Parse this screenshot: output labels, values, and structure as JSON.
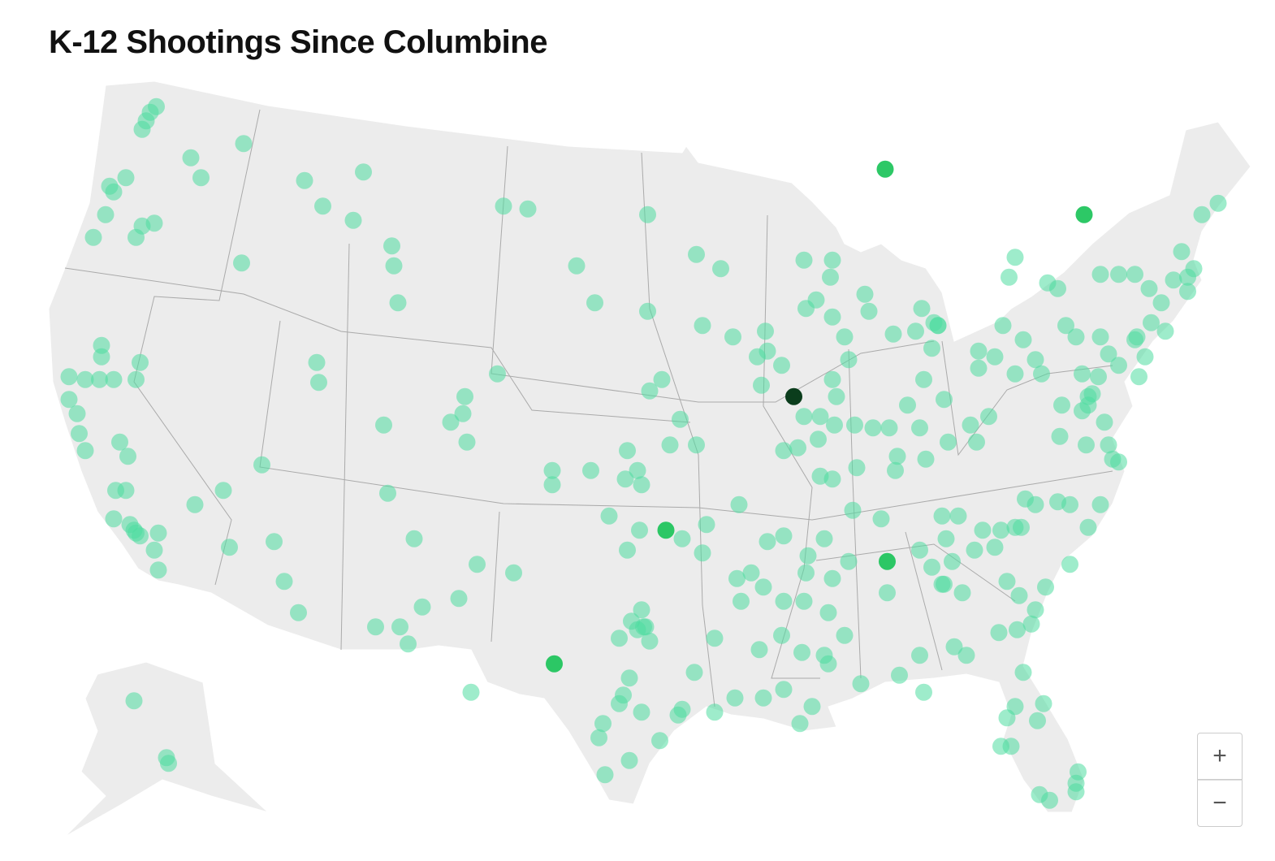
{
  "title": "K-12 Shootings Since Columbine",
  "map": {
    "groups": [
      {
        "color": "#4fdca0",
        "opacity": 0.55,
        "points": [
          [
            -120.0,
            49.5
          ],
          [
            -119.8,
            49.8
          ],
          [
            -119.5,
            50.0
          ],
          [
            -120.2,
            49.2
          ],
          [
            -121.0,
            47.5
          ],
          [
            -121.6,
            47.0
          ],
          [
            -121.8,
            47.2
          ],
          [
            -117.8,
            48.2
          ],
          [
            -117.3,
            47.5
          ],
          [
            -115.2,
            48.7
          ],
          [
            -122.0,
            46.2
          ],
          [
            -122.6,
            45.4
          ],
          [
            -120.5,
            45.4
          ],
          [
            -119.6,
            45.9
          ],
          [
            -120.2,
            45.8
          ],
          [
            -112.2,
            47.4
          ],
          [
            -109.3,
            47.7
          ],
          [
            -111.3,
            46.5
          ],
          [
            -109.8,
            46.0
          ],
          [
            -115.3,
            44.5
          ],
          [
            -107.9,
            45.1
          ],
          [
            -107.8,
            44.4
          ],
          [
            -107.6,
            43.1
          ],
          [
            -122.2,
            41.6
          ],
          [
            -122.2,
            41.2
          ],
          [
            -123.8,
            40.5
          ],
          [
            -123.0,
            40.4
          ],
          [
            -122.3,
            40.4
          ],
          [
            -121.6,
            40.4
          ],
          [
            -120.5,
            40.4
          ],
          [
            -120.3,
            41.0
          ],
          [
            -123.8,
            39.7
          ],
          [
            -123.4,
            39.2
          ],
          [
            -123.3,
            38.5
          ],
          [
            -123.0,
            37.9
          ],
          [
            -121.3,
            38.2
          ],
          [
            -120.9,
            37.7
          ],
          [
            -121.5,
            36.5
          ],
          [
            -121.0,
            36.5
          ],
          [
            -121.6,
            35.5
          ],
          [
            -120.6,
            35.1
          ],
          [
            -120.3,
            34.9
          ],
          [
            -119.4,
            35.0
          ],
          [
            -119.6,
            34.4
          ],
          [
            -119.4,
            33.7
          ],
          [
            -117.6,
            36.0
          ],
          [
            -116.2,
            36.5
          ],
          [
            -115.9,
            34.5
          ],
          [
            -120.8,
            35.3
          ],
          [
            -120.5,
            35.0
          ],
          [
            -111.6,
            41.0
          ],
          [
            -111.5,
            40.3
          ],
          [
            -114.3,
            37.4
          ],
          [
            -113.7,
            34.7
          ],
          [
            -113.2,
            33.3
          ],
          [
            -112.5,
            32.2
          ],
          [
            -108.3,
            38.8
          ],
          [
            -108.1,
            36.4
          ],
          [
            -106.8,
            34.8
          ],
          [
            -106.4,
            32.4
          ],
          [
            -108.7,
            31.7
          ],
          [
            -107.5,
            31.7
          ],
          [
            -107.1,
            31.1
          ],
          [
            -104.6,
            32.7
          ],
          [
            -103.7,
            33.9
          ],
          [
            -101.9,
            33.6
          ],
          [
            -104.0,
            29.4
          ],
          [
            -104.3,
            39.8
          ],
          [
            -104.4,
            39.2
          ],
          [
            -105.0,
            38.9
          ],
          [
            -104.2,
            38.2
          ],
          [
            -102.7,
            40.6
          ],
          [
            -102.4,
            46.5
          ],
          [
            -101.2,
            46.4
          ],
          [
            -95.3,
            46.2
          ],
          [
            -98.8,
            44.4
          ],
          [
            -97.9,
            43.1
          ],
          [
            -95.3,
            42.8
          ],
          [
            -94.6,
            40.4
          ],
          [
            -95.2,
            40.0
          ],
          [
            -93.7,
            39.0
          ],
          [
            -94.2,
            38.1
          ],
          [
            -92.9,
            38.1
          ],
          [
            -96.3,
            37.9
          ],
          [
            -98.1,
            37.2
          ],
          [
            -100.0,
            37.2
          ],
          [
            -100.0,
            36.7
          ],
          [
            -95.8,
            37.2
          ],
          [
            -96.4,
            36.9
          ],
          [
            -95.6,
            36.7
          ],
          [
            -97.2,
            35.6
          ],
          [
            -95.7,
            35.1
          ],
          [
            -93.6,
            34.8
          ],
          [
            -96.3,
            34.4
          ],
          [
            -92.4,
            35.3
          ],
          [
            -92.6,
            34.3
          ],
          [
            -90.8,
            36.0
          ],
          [
            -95.6,
            32.3
          ],
          [
            -95.5,
            31.7
          ],
          [
            -96.1,
            31.9
          ],
          [
            -95.2,
            31.2
          ],
          [
            -96.7,
            31.3
          ],
          [
            -96.2,
            29.9
          ],
          [
            -96.5,
            29.3
          ],
          [
            -96.7,
            29.0
          ],
          [
            -97.5,
            28.3
          ],
          [
            -97.7,
            27.8
          ],
          [
            -95.6,
            28.7
          ],
          [
            -93.8,
            28.6
          ],
          [
            -93.6,
            28.8
          ],
          [
            -94.7,
            27.7
          ],
          [
            -96.2,
            27.0
          ],
          [
            -97.4,
            26.5
          ],
          [
            -93.0,
            30.1
          ],
          [
            -92.0,
            31.3
          ],
          [
            -92.0,
            28.7
          ],
          [
            -95.4,
            31.7
          ],
          [
            -95.8,
            31.6
          ],
          [
            -92.9,
            44.8
          ],
          [
            -91.7,
            44.3
          ],
          [
            -87.6,
            44.6
          ],
          [
            -86.3,
            44.0
          ],
          [
            -86.2,
            44.6
          ],
          [
            -87.0,
            43.2
          ],
          [
            -87.5,
            42.9
          ],
          [
            -86.2,
            42.6
          ],
          [
            -92.6,
            42.3
          ],
          [
            -91.1,
            41.9
          ],
          [
            -89.5,
            42.1
          ],
          [
            -89.9,
            41.2
          ],
          [
            -89.4,
            41.4
          ],
          [
            -88.7,
            40.9
          ],
          [
            -89.7,
            40.2
          ],
          [
            -87.6,
            39.1
          ],
          [
            -86.9,
            38.3
          ],
          [
            -86.2,
            40.4
          ],
          [
            -86.0,
            39.8
          ],
          [
            -86.8,
            39.1
          ],
          [
            -86.1,
            38.8
          ],
          [
            -88.6,
            37.9
          ],
          [
            -87.9,
            38.0
          ],
          [
            -86.8,
            37.0
          ],
          [
            -86.2,
            36.9
          ],
          [
            -85.6,
            41.9
          ],
          [
            -85.4,
            41.1
          ],
          [
            -84.6,
            43.4
          ],
          [
            -84.4,
            42.8
          ],
          [
            -81.8,
            42.9
          ],
          [
            -81.0,
            42.3
          ],
          [
            -82.1,
            42.1
          ],
          [
            -83.2,
            42.0
          ],
          [
            -81.3,
            41.5
          ],
          [
            -85.1,
            38.8
          ],
          [
            -84.2,
            38.7
          ],
          [
            -83.4,
            38.7
          ],
          [
            -82.5,
            39.5
          ],
          [
            -81.9,
            38.7
          ],
          [
            -81.6,
            37.6
          ],
          [
            -80.7,
            39.7
          ],
          [
            -81.7,
            40.4
          ],
          [
            -80.5,
            38.2
          ],
          [
            -83.0,
            37.7
          ],
          [
            -83.1,
            37.2
          ],
          [
            -85.0,
            37.3
          ],
          [
            -79.0,
            41.4
          ],
          [
            -78.2,
            41.2
          ],
          [
            -79.0,
            40.8
          ],
          [
            -79.4,
            38.8
          ],
          [
            -78.5,
            39.1
          ],
          [
            -79.1,
            38.2
          ],
          [
            -81.2,
            42.4
          ],
          [
            -81.0,
            42.3
          ],
          [
            -85.2,
            35.8
          ],
          [
            -83.8,
            35.5
          ],
          [
            -80.8,
            35.6
          ],
          [
            -80.0,
            35.6
          ],
          [
            -80.6,
            34.8
          ],
          [
            -78.8,
            35.1
          ],
          [
            -77.9,
            35.1
          ],
          [
            -77.2,
            35.2
          ],
          [
            -76.9,
            35.2
          ],
          [
            -83.5,
            32.9
          ],
          [
            -81.9,
            34.4
          ],
          [
            -81.3,
            33.8
          ],
          [
            -80.7,
            33.2
          ],
          [
            -80.3,
            34.0
          ],
          [
            -79.8,
            32.9
          ],
          [
            -79.2,
            34.4
          ],
          [
            -78.2,
            34.5
          ],
          [
            -77.6,
            33.3
          ],
          [
            -77.0,
            32.8
          ],
          [
            -76.2,
            32.3
          ],
          [
            -76.4,
            31.8
          ],
          [
            -77.1,
            31.6
          ],
          [
            -78.0,
            31.5
          ],
          [
            -80.2,
            31.0
          ],
          [
            -79.6,
            30.7
          ],
          [
            -81.9,
            30.7
          ],
          [
            -82.9,
            30.0
          ],
          [
            -81.7,
            29.4
          ],
          [
            -84.8,
            29.7
          ],
          [
            -86.4,
            30.4
          ],
          [
            -86.6,
            30.7
          ],
          [
            -87.7,
            30.8
          ],
          [
            -87.6,
            32.6
          ],
          [
            -88.6,
            32.6
          ],
          [
            -86.4,
            32.2
          ],
          [
            -85.6,
            31.4
          ],
          [
            -89.8,
            30.9
          ],
          [
            -88.6,
            29.5
          ],
          [
            -89.6,
            29.2
          ],
          [
            -91.0,
            29.2
          ],
          [
            -87.2,
            28.9
          ],
          [
            -87.8,
            28.3
          ],
          [
            -88.7,
            31.4
          ],
          [
            -87.4,
            34.2
          ],
          [
            -87.5,
            33.6
          ],
          [
            -86.2,
            33.4
          ],
          [
            -85.4,
            34.0
          ],
          [
            -86.6,
            34.8
          ],
          [
            -88.6,
            34.9
          ],
          [
            -89.4,
            34.7
          ],
          [
            -90.7,
            32.6
          ],
          [
            -90.9,
            33.4
          ],
          [
            -90.2,
            33.6
          ],
          [
            -89.6,
            33.1
          ],
          [
            -80.8,
            33.2
          ],
          [
            -76.8,
            30.1
          ],
          [
            -77.2,
            28.9
          ],
          [
            -75.8,
            29.0
          ],
          [
            -76.1,
            28.4
          ],
          [
            -77.6,
            28.5
          ],
          [
            -77.4,
            27.5
          ],
          [
            -77.9,
            27.5
          ],
          [
            -74.1,
            26.6
          ],
          [
            -74.2,
            25.9
          ],
          [
            -76.0,
            25.8
          ],
          [
            -75.5,
            25.6
          ],
          [
            -74.2,
            26.2
          ],
          [
            -76.2,
            36.0
          ],
          [
            -76.7,
            36.2
          ],
          [
            -75.1,
            36.1
          ],
          [
            -74.5,
            36.0
          ],
          [
            -73.0,
            36.0
          ],
          [
            -73.6,
            35.2
          ],
          [
            -74.5,
            33.9
          ],
          [
            -75.7,
            33.1
          ],
          [
            -75.0,
            38.4
          ],
          [
            -73.7,
            38.1
          ],
          [
            -72.4,
            37.6
          ],
          [
            -72.1,
            37.5
          ],
          [
            -72.6,
            38.1
          ],
          [
            -73.9,
            39.3
          ],
          [
            -73.6,
            39.8
          ],
          [
            -72.8,
            38.9
          ],
          [
            -73.4,
            39.9
          ],
          [
            -74.9,
            39.5
          ],
          [
            -73.9,
            40.6
          ],
          [
            -73.1,
            40.5
          ],
          [
            -77.8,
            42.3
          ],
          [
            -76.8,
            41.8
          ],
          [
            -75.9,
            40.6
          ],
          [
            -76.2,
            41.1
          ],
          [
            -77.2,
            40.6
          ],
          [
            -74.7,
            42.3
          ],
          [
            -74.2,
            41.9
          ],
          [
            -73.0,
            41.9
          ],
          [
            -72.6,
            41.3
          ],
          [
            -72.1,
            40.9
          ],
          [
            -71.3,
            41.8
          ],
          [
            -70.8,
            41.2
          ],
          [
            -71.1,
            40.5
          ],
          [
            -69.8,
            42.1
          ],
          [
            -70.5,
            42.4
          ],
          [
            -70.0,
            43.1
          ],
          [
            -70.6,
            43.6
          ],
          [
            -69.4,
            43.9
          ],
          [
            -68.7,
            44.0
          ],
          [
            -69.0,
            44.9
          ],
          [
            -68.4,
            44.3
          ],
          [
            -68.7,
            43.5
          ],
          [
            -73.0,
            44.1
          ],
          [
            -72.1,
            44.1
          ],
          [
            -71.3,
            44.1
          ],
          [
            -75.6,
            43.8
          ],
          [
            -75.1,
            43.6
          ],
          [
            -77.5,
            44.0
          ],
          [
            -77.2,
            44.7
          ],
          [
            -68.0,
            46.2
          ],
          [
            -67.2,
            46.6
          ],
          [
            -73.6,
            39.5
          ],
          [
            -71.2,
            41.9
          ],
          [
            -120.6,
            29.1
          ],
          [
            -119.0,
            27.1
          ],
          [
            -118.9,
            26.9
          ]
        ]
      },
      {
        "color": "#22c55e",
        "opacity": 0.95,
        "points": [
          [
            -94.4,
            35.1
          ],
          [
            -99.9,
            30.4
          ],
          [
            -83.6,
            47.8
          ],
          [
            -73.8,
            46.2
          ],
          [
            -83.5,
            34.0
          ]
        ]
      },
      {
        "color": "#0b3d1c",
        "opacity": 1,
        "points": [
          [
            -88.1,
            39.8
          ]
        ]
      }
    ]
  },
  "zoom": {
    "in": "+",
    "out": "−"
  }
}
